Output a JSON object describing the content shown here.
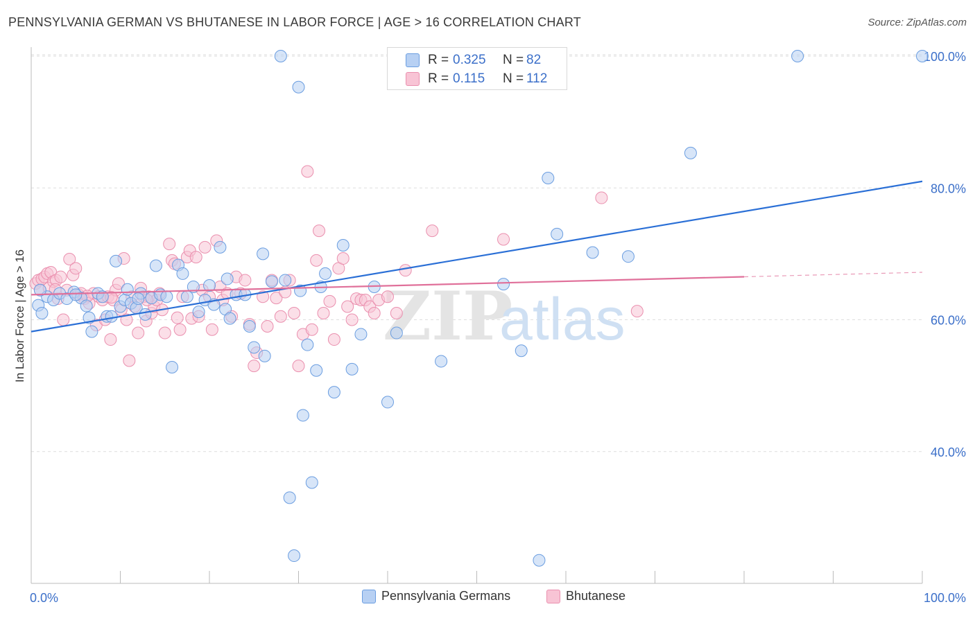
{
  "header": {
    "title": "PENNSYLVANIA GERMAN VS BHUTANESE IN LABOR FORCE | AGE > 16 CORRELATION CHART",
    "source": "Source: ZipAtlas.com"
  },
  "stats": [
    {
      "r_label": "R =",
      "r_value": "0.325",
      "n_label": "N =",
      "n_value": "82"
    },
    {
      "r_label": "R =",
      "r_value": "0.115",
      "n_label": "N =",
      "n_value": "112"
    }
  ],
  "watermark": {
    "zip": "ZIP",
    "atlas": "atlas"
  },
  "colors": {
    "blue_fill": "#b7d0f3",
    "blue_stroke": "#6a9de0",
    "blue_line": "#2a6fd6",
    "pink_fill": "#f8c4d5",
    "pink_stroke": "#ea8fae",
    "pink_line": "#e0709a",
    "axis_label": "#3b6fc9",
    "grid": "#dedede"
  },
  "chart_data": {
    "type": "scatter",
    "title": "PENNSYLVANIA GERMAN VS BHUTANESE IN LABOR FORCE | AGE > 16 CORRELATION CHART",
    "xlabel": "",
    "ylabel": "In Labor Force | Age > 16",
    "xlim": [
      0,
      100
    ],
    "ylim": [
      20,
      102
    ],
    "x_tick_labels": [
      "0.0%",
      "100.0%"
    ],
    "y_ticks": [
      40,
      60,
      80,
      100
    ],
    "y_tick_labels": [
      "40.0%",
      "60.0%",
      "80.0%",
      "100.0%"
    ],
    "grid": true,
    "legend": "bottom",
    "series": [
      {
        "name": "Pennsylvania Germans",
        "color": "#b7d0f3",
        "trend": {
          "x": [
            0,
            100
          ],
          "y": [
            58.2,
            81.0
          ],
          "dashed_from": null
        },
        "points": [
          [
            0.8,
            62.2
          ],
          [
            1.2,
            61.0
          ],
          [
            1.8,
            63.5
          ],
          [
            2.5,
            63.0
          ],
          [
            3.2,
            64.0
          ],
          [
            4.0,
            63.2
          ],
          [
            4.8,
            64.2
          ],
          [
            5.6,
            63.3
          ],
          [
            6.2,
            62.1
          ],
          [
            6.5,
            60.3
          ],
          [
            6.8,
            58.2
          ],
          [
            7.5,
            64.0
          ],
          [
            8.0,
            63.5
          ],
          [
            8.5,
            60.5
          ],
          [
            9.0,
            60.5
          ],
          [
            9.5,
            68.9
          ],
          [
            10.0,
            62.0
          ],
          [
            10.5,
            63.0
          ],
          [
            11.2,
            62.5
          ],
          [
            11.8,
            61.8
          ],
          [
            12.3,
            64.0
          ],
          [
            12.8,
            60.8
          ],
          [
            13.5,
            63.3
          ],
          [
            14.0,
            68.2
          ],
          [
            14.5,
            63.8
          ],
          [
            15.2,
            63.5
          ],
          [
            15.8,
            52.8
          ],
          [
            16.5,
            68.3
          ],
          [
            17.0,
            67.0
          ],
          [
            17.5,
            63.5
          ],
          [
            18.2,
            65.0
          ],
          [
            18.8,
            61.2
          ],
          [
            19.5,
            63.0
          ],
          [
            20.0,
            65.2
          ],
          [
            20.5,
            62.3
          ],
          [
            21.2,
            71.0
          ],
          [
            21.8,
            61.6
          ],
          [
            22.3,
            60.2
          ],
          [
            23.0,
            63.8
          ],
          [
            24.0,
            63.8
          ],
          [
            24.5,
            59.0
          ],
          [
            25.0,
            55.8
          ],
          [
            26.2,
            54.5
          ],
          [
            26.0,
            70.0
          ],
          [
            27.0,
            65.8
          ],
          [
            28.0,
            100.0
          ],
          [
            28.5,
            66.0
          ],
          [
            29.0,
            33.0
          ],
          [
            29.5,
            24.2
          ],
          [
            30.0,
            95.3
          ],
          [
            30.5,
            45.5
          ],
          [
            31.0,
            56.2
          ],
          [
            31.5,
            35.3
          ],
          [
            32.0,
            52.3
          ],
          [
            32.5,
            65.0
          ],
          [
            33.0,
            67.0
          ],
          [
            34.0,
            49.0
          ],
          [
            35.0,
            71.3
          ],
          [
            36.0,
            52.5
          ],
          [
            37.0,
            57.8
          ],
          [
            38.5,
            65.0
          ],
          [
            40.0,
            47.5
          ],
          [
            41.0,
            58.0
          ],
          [
            44.0,
            100.0
          ],
          [
            45.0,
            95.8
          ],
          [
            46.0,
            53.7
          ],
          [
            53.0,
            65.4
          ],
          [
            55.0,
            55.3
          ],
          [
            58.0,
            81.5
          ],
          [
            59.0,
            73.0
          ],
          [
            63.0,
            70.2
          ],
          [
            67.0,
            69.6
          ],
          [
            74.0,
            85.3
          ],
          [
            86.0,
            100.0
          ],
          [
            100.0,
            100.0
          ],
          [
            57.0,
            23.5
          ],
          [
            22.0,
            66.2
          ],
          [
            12.0,
            63.2
          ],
          [
            5.0,
            63.8
          ],
          [
            1.0,
            64.5
          ],
          [
            30.2,
            64.4
          ],
          [
            10.8,
            64.6
          ]
        ]
      },
      {
        "name": "Bhutanese",
        "color": "#f8c4d5",
        "trend": {
          "x": [
            0,
            100
          ],
          "y": [
            63.8,
            67.2
          ],
          "dashed_from": 80
        },
        "points": [
          [
            0.5,
            65.5
          ],
          [
            0.8,
            66.0
          ],
          [
            1.0,
            64.5
          ],
          [
            1.2,
            66.2
          ],
          [
            1.5,
            66.5
          ],
          [
            1.8,
            67.0
          ],
          [
            2.0,
            64.8
          ],
          [
            2.2,
            67.2
          ],
          [
            2.5,
            65.8
          ],
          [
            2.8,
            66.0
          ],
          [
            3.0,
            63.2
          ],
          [
            3.3,
            66.5
          ],
          [
            3.6,
            60.0
          ],
          [
            4.0,
            64.5
          ],
          [
            4.3,
            69.2
          ],
          [
            4.7,
            66.8
          ],
          [
            5.0,
            67.8
          ],
          [
            5.3,
            63.8
          ],
          [
            5.6,
            64.0
          ],
          [
            6.0,
            63.2
          ],
          [
            6.5,
            62.5
          ],
          [
            7.0,
            64.0
          ],
          [
            7.3,
            59.2
          ],
          [
            7.6,
            63.5
          ],
          [
            8.0,
            63.0
          ],
          [
            8.3,
            60.0
          ],
          [
            8.6,
            63.5
          ],
          [
            8.9,
            57.0
          ],
          [
            9.2,
            63.0
          ],
          [
            9.5,
            64.5
          ],
          [
            9.8,
            65.5
          ],
          [
            10.1,
            61.5
          ],
          [
            10.4,
            69.3
          ],
          [
            10.7,
            60.0
          ],
          [
            11.0,
            53.8
          ],
          [
            11.3,
            63.5
          ],
          [
            11.6,
            62.0
          ],
          [
            12.0,
            58.0
          ],
          [
            12.3,
            64.8
          ],
          [
            12.6,
            63.5
          ],
          [
            12.9,
            59.8
          ],
          [
            13.2,
            63.5
          ],
          [
            13.5,
            61.0
          ],
          [
            13.8,
            62.0
          ],
          [
            14.1,
            63.0
          ],
          [
            14.4,
            64.0
          ],
          [
            14.7,
            61.5
          ],
          [
            15.0,
            58.0
          ],
          [
            15.5,
            71.5
          ],
          [
            15.8,
            69.0
          ],
          [
            16.1,
            68.5
          ],
          [
            16.4,
            60.3
          ],
          [
            16.7,
            58.5
          ],
          [
            17.0,
            63.5
          ],
          [
            17.5,
            69.5
          ],
          [
            17.8,
            70.5
          ],
          [
            18.0,
            60.2
          ],
          [
            18.5,
            69.5
          ],
          [
            18.8,
            60.5
          ],
          [
            19.2,
            64.5
          ],
          [
            19.5,
            71.0
          ],
          [
            20.0,
            63.5
          ],
          [
            20.3,
            58.5
          ],
          [
            20.8,
            72.0
          ],
          [
            21.2,
            65.0
          ],
          [
            21.5,
            63.0
          ],
          [
            22.0,
            64.0
          ],
          [
            22.5,
            60.5
          ],
          [
            23.0,
            66.5
          ],
          [
            23.5,
            64.0
          ],
          [
            24.0,
            66.0
          ],
          [
            24.5,
            59.3
          ],
          [
            25.0,
            53.0
          ],
          [
            25.3,
            55.0
          ],
          [
            26.0,
            63.5
          ],
          [
            26.5,
            59.0
          ],
          [
            27.0,
            66.0
          ],
          [
            27.5,
            63.3
          ],
          [
            28.0,
            60.5
          ],
          [
            28.5,
            64.2
          ],
          [
            29.0,
            66.0
          ],
          [
            29.5,
            61.0
          ],
          [
            30.0,
            53.0
          ],
          [
            30.5,
            57.8
          ],
          [
            31.0,
            82.5
          ],
          [
            31.5,
            58.5
          ],
          [
            32.0,
            69.0
          ],
          [
            32.3,
            73.5
          ],
          [
            32.8,
            61.0
          ],
          [
            33.5,
            62.8
          ],
          [
            34.0,
            57.0
          ],
          [
            34.5,
            67.8
          ],
          [
            35.0,
            69.3
          ],
          [
            35.5,
            62.0
          ],
          [
            36.0,
            60.0
          ],
          [
            36.5,
            63.2
          ],
          [
            37.0,
            63.0
          ],
          [
            37.5,
            63.0
          ],
          [
            38.0,
            62.0
          ],
          [
            38.5,
            61.0
          ],
          [
            39.0,
            63.0
          ],
          [
            40.0,
            63.5
          ],
          [
            41.0,
            61.0
          ],
          [
            42.0,
            67.5
          ],
          [
            45.0,
            73.5
          ],
          [
            53.0,
            72.2
          ],
          [
            64.0,
            78.5
          ],
          [
            68.0,
            61.3
          ],
          [
            13.0,
            63.0
          ],
          [
            2.7,
            64.6
          ],
          [
            6.3,
            63.6
          ],
          [
            9.0,
            63.4
          ]
        ]
      }
    ]
  }
}
